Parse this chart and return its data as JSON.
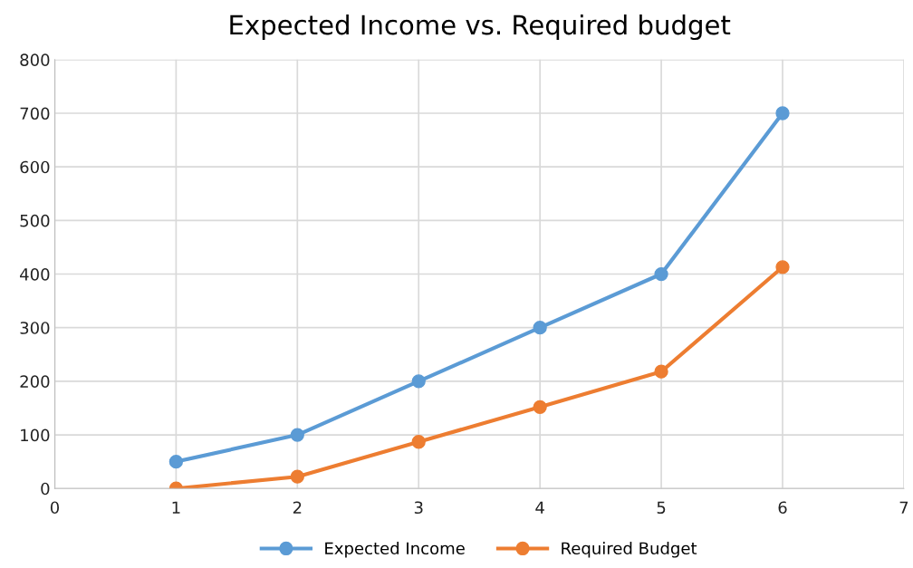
{
  "chart_data": {
    "type": "line",
    "title": "Expected Income vs. Required budget",
    "x": [
      1,
      2,
      3,
      4,
      5,
      6
    ],
    "series": [
      {
        "name": "Expected Income",
        "color": "#5b9bd5",
        "values": [
          50,
          100,
          200,
          300,
          400,
          700
        ]
      },
      {
        "name": "Required Budget",
        "color": "#ed7d31",
        "values": [
          0,
          22,
          87,
          152,
          218,
          413
        ]
      }
    ],
    "xlim": [
      0,
      7
    ],
    "xticks": [
      0,
      1,
      2,
      3,
      4,
      5,
      6,
      7
    ],
    "ylim": [
      0,
      800
    ],
    "yticks": [
      0,
      100,
      200,
      300,
      400,
      500,
      600,
      700,
      800
    ],
    "grid": true,
    "legend": "bottom",
    "marker": "circle",
    "line_style": "solid"
  }
}
